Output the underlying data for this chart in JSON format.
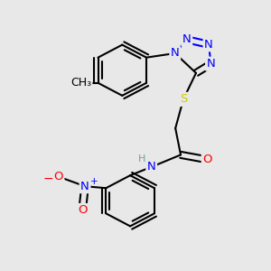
{
  "bg_color": "#e8e8e8",
  "bond_color": "#000000",
  "bond_width": 1.5,
  "atom_colors": {
    "N": "#0000ff",
    "S": "#cccc00",
    "O": "#ff0000",
    "H": "#6fa0a0",
    "C": "#000000"
  },
  "figsize": [
    3.0,
    3.0
  ],
  "dpi": 100
}
